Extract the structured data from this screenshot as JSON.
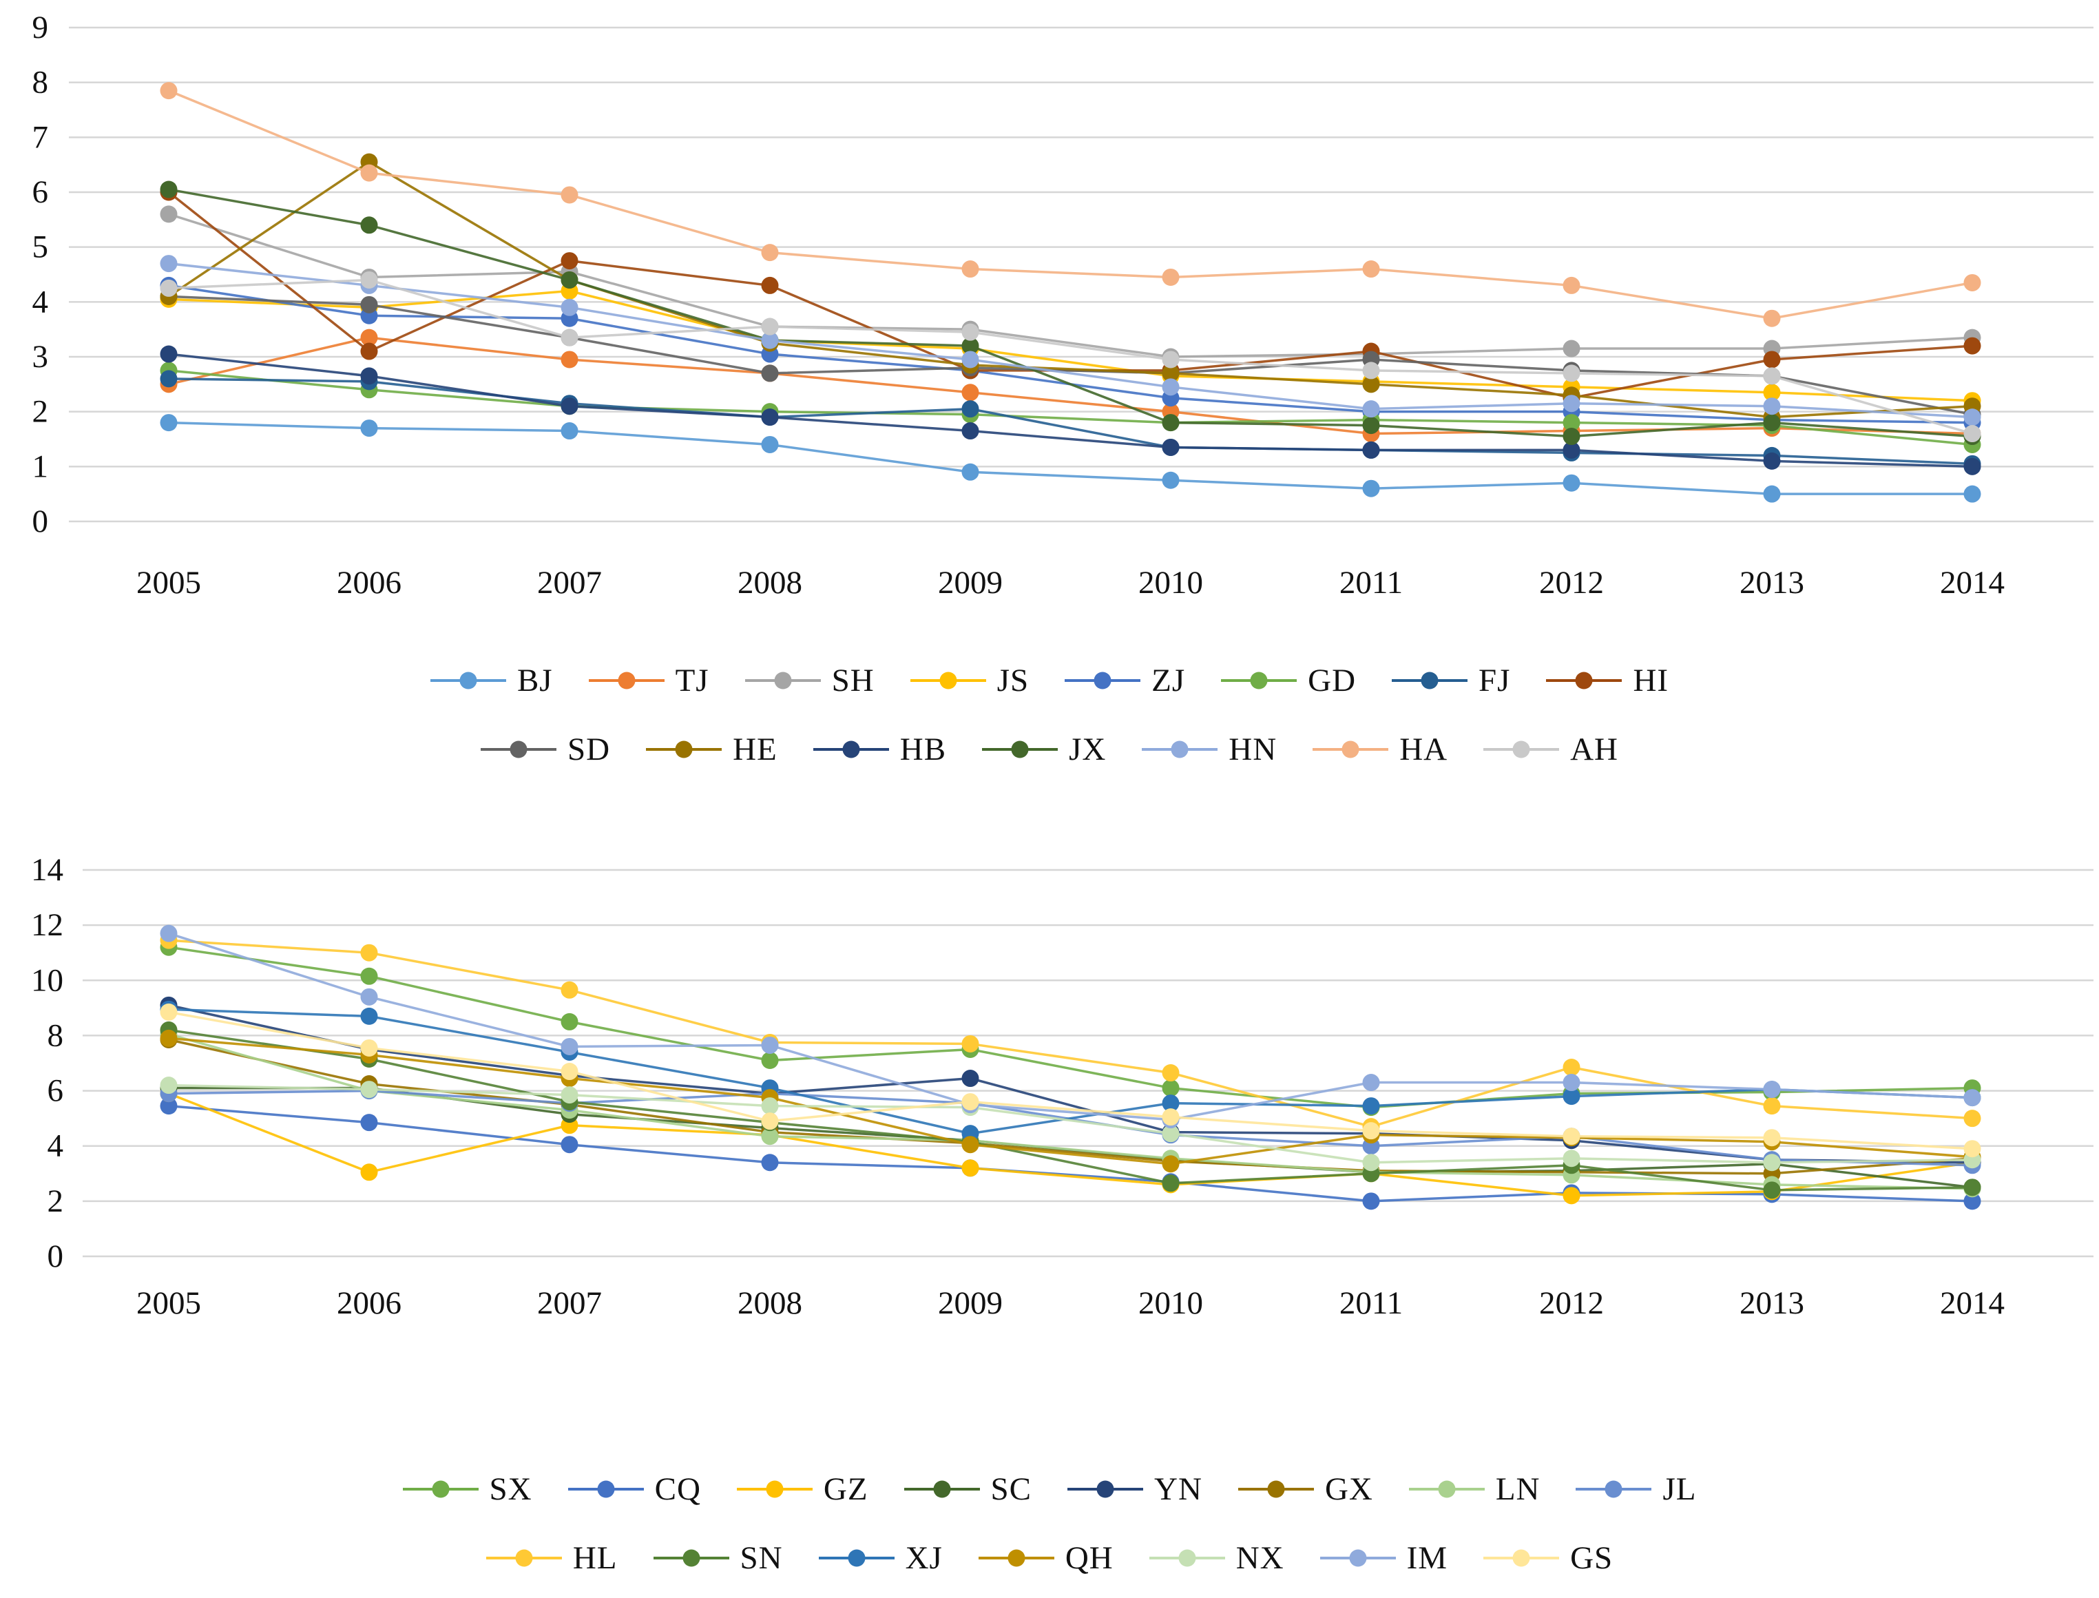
{
  "figure": {
    "background": "#ffffff",
    "description": "Two stacked multi-series line charts, years 2005-2014, Excel-style palette, legends below each chart"
  },
  "chart_data": [
    {
      "type": "line",
      "title": "",
      "xlabel": "",
      "ylabel": "",
      "categories": [
        "2005",
        "2006",
        "2007",
        "2008",
        "2009",
        "2010",
        "2011",
        "2012",
        "2013",
        "2014"
      ],
      "ylim": [
        0,
        9
      ],
      "ytick_step": 1,
      "yticklabels": [
        "0",
        "1",
        "2",
        "3",
        "4",
        "5",
        "6",
        "7",
        "8",
        "9"
      ],
      "grid": true,
      "legend_position": "bottom",
      "legend_rows": [
        [
          "BJ",
          "TJ",
          "SH",
          "JS",
          "ZJ",
          "GD",
          "FJ",
          "HI"
        ],
        [
          "SD",
          "HE",
          "HB",
          "JX",
          "HN",
          "HA",
          "AH"
        ]
      ],
      "series": [
        {
          "name": "BJ",
          "color": "#5B9BD5",
          "values": [
            1.8,
            1.7,
            1.65,
            1.4,
            0.9,
            0.75,
            0.6,
            0.7,
            0.5,
            0.5
          ]
        },
        {
          "name": "TJ",
          "color": "#ED7D31",
          "values": [
            2.5,
            3.35,
            2.95,
            2.7,
            2.35,
            2.0,
            1.6,
            1.65,
            1.7,
            1.6
          ]
        },
        {
          "name": "SH",
          "color": "#A5A5A5",
          "values": [
            5.6,
            4.45,
            4.55,
            3.55,
            3.5,
            3.0,
            3.05,
            3.15,
            3.15,
            3.35
          ]
        },
        {
          "name": "JS",
          "color": "#FFC000",
          "values": [
            4.05,
            3.9,
            4.2,
            3.3,
            3.15,
            2.65,
            2.55,
            2.45,
            2.35,
            2.2
          ]
        },
        {
          "name": "ZJ",
          "color": "#4472C4",
          "values": [
            4.3,
            3.75,
            3.7,
            3.05,
            2.75,
            2.25,
            2.0,
            2.0,
            1.85,
            1.8
          ]
        },
        {
          "name": "GD",
          "color": "#70AD47",
          "values": [
            2.75,
            2.4,
            2.1,
            2.0,
            1.95,
            1.8,
            1.85,
            1.8,
            1.75,
            1.4
          ]
        },
        {
          "name": "FJ",
          "color": "#255E91",
          "values": [
            2.6,
            2.55,
            2.15,
            1.9,
            2.05,
            1.35,
            1.3,
            1.25,
            1.2,
            1.05
          ]
        },
        {
          "name": "HI",
          "color": "#9E480E",
          "values": [
            6.0,
            3.1,
            4.75,
            4.3,
            2.75,
            2.75,
            3.1,
            2.25,
            2.95,
            3.2
          ]
        },
        {
          "name": "SD",
          "color": "#636363",
          "values": [
            4.1,
            3.95,
            3.35,
            2.7,
            2.8,
            2.7,
            2.95,
            2.75,
            2.65,
            1.95
          ]
        },
        {
          "name": "HE",
          "color": "#997300",
          "values": [
            4.1,
            6.55,
            4.4,
            3.25,
            2.85,
            2.7,
            2.5,
            2.3,
            1.9,
            2.1
          ]
        },
        {
          "name": "HB",
          "color": "#264478",
          "values": [
            3.05,
            2.65,
            2.1,
            1.9,
            1.65,
            1.35,
            1.3,
            1.3,
            1.1,
            1.0
          ]
        },
        {
          "name": "JX",
          "color": "#43682B",
          "values": [
            6.05,
            5.4,
            4.4,
            3.3,
            3.2,
            1.8,
            1.75,
            1.55,
            1.8,
            1.55
          ]
        },
        {
          "name": "HN",
          "color": "#8FAADC",
          "values": [
            4.7,
            4.3,
            3.9,
            3.3,
            2.95,
            2.45,
            2.05,
            2.15,
            2.1,
            1.9
          ]
        },
        {
          "name": "HA",
          "color": "#F4B183",
          "values": [
            7.85,
            6.35,
            5.95,
            4.9,
            4.6,
            4.45,
            4.6,
            4.3,
            3.7,
            4.35
          ]
        },
        {
          "name": "AH",
          "color": "#C9C9C9",
          "values": [
            4.25,
            4.4,
            3.35,
            3.55,
            3.45,
            2.95,
            2.75,
            2.7,
            2.65,
            1.6
          ]
        }
      ]
    },
    {
      "type": "line",
      "title": "",
      "xlabel": "",
      "ylabel": "",
      "categories": [
        "2005",
        "2006",
        "2007",
        "2008",
        "2009",
        "2010",
        "2011",
        "2012",
        "2013",
        "2014"
      ],
      "ylim": [
        0,
        14
      ],
      "ytick_step": 2,
      "yticklabels": [
        "0",
        "2",
        "4",
        "6",
        "8",
        "10",
        "12",
        "14"
      ],
      "grid": true,
      "legend_position": "bottom",
      "legend_rows": [
        [
          "SX",
          "CQ",
          "GZ",
          "SC",
          "YN",
          "GX",
          "LN",
          "JL"
        ],
        [
          "HL",
          "SN",
          "XJ",
          "QH",
          "NX",
          "IM",
          "GS"
        ]
      ],
      "series": [
        {
          "name": "SX",
          "color": "#70AD47",
          "values": [
            11.2,
            10.15,
            8.5,
            7.1,
            7.5,
            6.1,
            5.4,
            5.9,
            5.95,
            6.1
          ]
        },
        {
          "name": "CQ",
          "color": "#4472C4",
          "values": [
            5.45,
            4.85,
            4.05,
            3.4,
            3.2,
            2.7,
            2.0,
            2.3,
            2.25,
            2.0
          ]
        },
        {
          "name": "GZ",
          "color": "#FFC000",
          "values": [
            5.9,
            3.05,
            4.75,
            4.4,
            3.2,
            2.6,
            3.0,
            2.2,
            2.35,
            3.4
          ]
        },
        {
          "name": "SC",
          "color": "#43682B",
          "values": [
            6.1,
            6.1,
            5.15,
            4.65,
            4.2,
            3.5,
            3.05,
            3.1,
            3.35,
            2.5
          ]
        },
        {
          "name": "YN",
          "color": "#264478",
          "values": [
            9.1,
            7.5,
            6.55,
            5.9,
            6.45,
            4.5,
            4.45,
            4.2,
            3.5,
            3.4
          ]
        },
        {
          "name": "GX",
          "color": "#997300",
          "values": [
            7.85,
            6.25,
            5.5,
            4.5,
            4.1,
            3.45,
            3.1,
            3.05,
            3.0,
            3.55
          ]
        },
        {
          "name": "LN",
          "color": "#A9D18E",
          "values": [
            8.05,
            6.0,
            5.3,
            4.35,
            4.2,
            3.55,
            3.05,
            2.95,
            2.6,
            2.45
          ]
        },
        {
          "name": "JL",
          "color": "#698ED0",
          "values": [
            5.9,
            6.0,
            5.55,
            5.9,
            5.55,
            4.4,
            4.0,
            4.35,
            3.5,
            3.3
          ]
        },
        {
          "name": "HL",
          "color": "#FFC934",
          "values": [
            11.45,
            11.0,
            9.65,
            7.75,
            7.7,
            6.65,
            4.7,
            6.85,
            5.45,
            5.0
          ]
        },
        {
          "name": "SN",
          "color": "#548235",
          "values": [
            8.2,
            7.15,
            5.6,
            4.85,
            4.15,
            2.65,
            3.0,
            3.3,
            2.4,
            2.5
          ]
        },
        {
          "name": "XJ",
          "color": "#2E75B6",
          "values": [
            8.95,
            8.7,
            7.4,
            6.1,
            4.45,
            5.55,
            5.45,
            5.8,
            6.05,
            5.75
          ]
        },
        {
          "name": "QH",
          "color": "#BF8F00",
          "values": [
            7.9,
            7.3,
            6.45,
            5.75,
            4.05,
            3.35,
            4.4,
            4.3,
            4.15,
            3.6
          ]
        },
        {
          "name": "NX",
          "color": "#C5E0B4",
          "values": [
            6.2,
            6.05,
            5.85,
            5.45,
            5.4,
            4.45,
            3.4,
            3.55,
            3.4,
            3.5
          ]
        },
        {
          "name": "IM",
          "color": "#8FAADC",
          "values": [
            11.7,
            9.4,
            7.6,
            7.65,
            5.5,
            4.95,
            6.3,
            6.3,
            6.05,
            5.75
          ]
        },
        {
          "name": "GS",
          "color": "#FFE699",
          "values": [
            8.85,
            7.55,
            6.7,
            4.9,
            5.6,
            5.05,
            4.55,
            4.35,
            4.3,
            3.9
          ]
        }
      ]
    }
  ]
}
